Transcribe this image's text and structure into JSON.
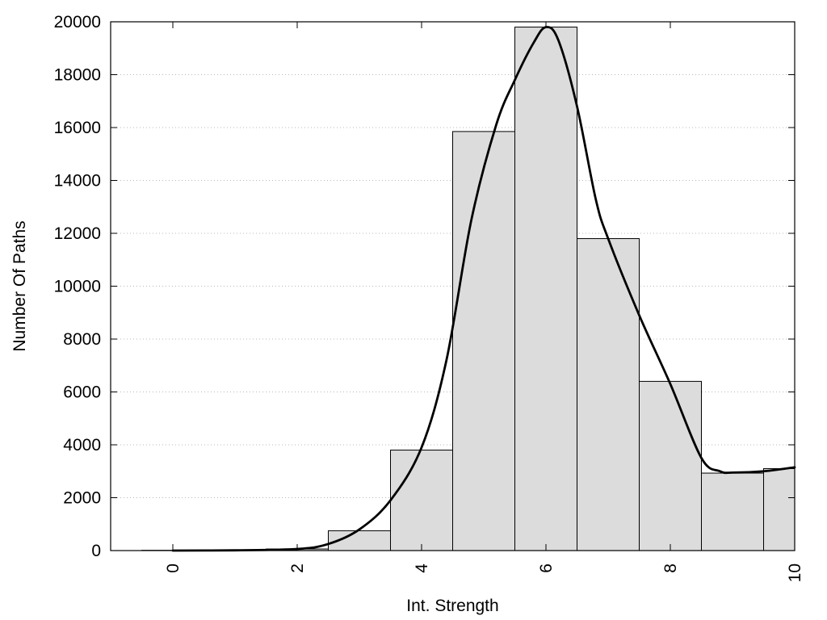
{
  "chart_data": {
    "type": "bar",
    "xlabel": "Int. Strength",
    "ylabel": "Number Of Paths",
    "xlim": [
      -1,
      10
    ],
    "ylim": [
      0,
      20000
    ],
    "x_ticks": [
      0,
      2,
      4,
      6,
      8,
      10
    ],
    "x_tick_labels": [
      "0",
      "2",
      "4",
      "6",
      "8",
      "10"
    ],
    "y_ticks": [
      0,
      2000,
      4000,
      6000,
      8000,
      10000,
      12000,
      14000,
      16000,
      18000,
      20000
    ],
    "y_tick_labels": [
      "0",
      "2000",
      "4000",
      "6000",
      "8000",
      "10000",
      "12000",
      "14000",
      "16000",
      "18000",
      "20000"
    ],
    "grid": "horizontal dotted",
    "bars": [
      {
        "x": 0,
        "value": 10
      },
      {
        "x": 1,
        "value": 20
      },
      {
        "x": 2,
        "value": 60
      },
      {
        "x": 3,
        "value": 750
      },
      {
        "x": 4,
        "value": 3800
      },
      {
        "x": 5,
        "value": 15850
      },
      {
        "x": 6,
        "value": 19800
      },
      {
        "x": 7,
        "value": 11800
      },
      {
        "x": 8,
        "value": 6400
      },
      {
        "x": 9,
        "value": 2930
      },
      {
        "x": 10,
        "value": 3100
      }
    ],
    "bar_color": "#dcdcdc",
    "curve": {
      "x": [
        0,
        1,
        2,
        2.5,
        3,
        3.5,
        4,
        4.4,
        4.8,
        5.2,
        5.5,
        5.8,
        6.0,
        6.2,
        6.5,
        6.8,
        7.0,
        7.5,
        8.0,
        8.5,
        8.8,
        9.0,
        9.5,
        10.0
      ],
      "y": [
        0,
        10,
        60,
        250,
        800,
        1900,
        3900,
        7200,
        12500,
        16100,
        17800,
        19200,
        19800,
        19300,
        16800,
        13300,
        11800,
        8900,
        6300,
        3500,
        3000,
        2950,
        3000,
        3150
      ],
      "color": "#000000"
    }
  }
}
